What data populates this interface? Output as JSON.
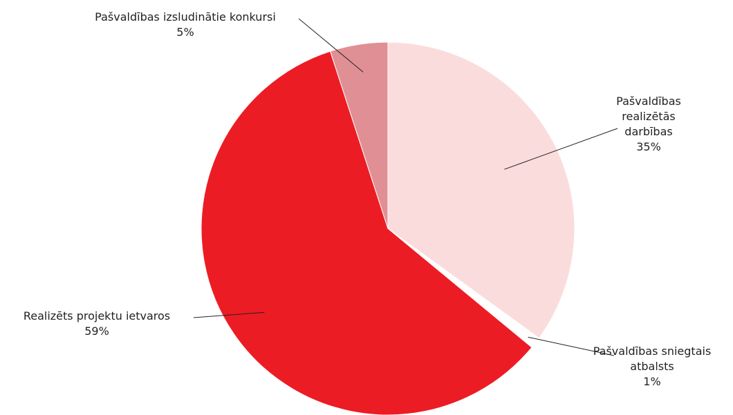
{
  "chart_data": {
    "type": "pie",
    "categories": [
      "Pašvaldības realizētās darbības",
      "Pašvaldības sniegtais atbalsts",
      "Realizēts projektu ietvaros",
      "Pašvaldības izsludinātie konkursi"
    ],
    "values": [
      35,
      1,
      59,
      5
    ],
    "value_labels": [
      "35%",
      "1%",
      "59%",
      "5%"
    ],
    "colors": [
      "#fbdcdd",
      "#ffffff",
      "#ec1c24",
      "#e09095"
    ]
  }
}
